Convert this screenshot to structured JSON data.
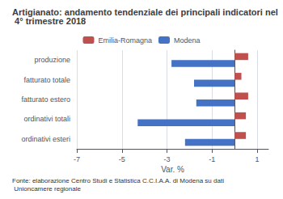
{
  "chart_data": {
    "type": "bar",
    "orientation": "horizontal",
    "title": "Artigianato: andamento tendenziale dei principali indicatori nel 4° trimestre 2018",
    "annotations": [
      "Fonte: elaborazione Centro Studi e Statistica C.C.I.A.A. di Modena su dati Unioncamere regionale"
    ],
    "categories": [
      "ordinativi esteri",
      "ordinativi totali",
      "fatturato estero",
      "fatturato totale",
      "produzione"
    ],
    "series": [
      {
        "name": "Emilia-Romagna",
        "color": "#c0504d",
        "values": [
          0.5,
          0.5,
          0.6,
          0.3,
          0.6
        ]
      },
      {
        "name": "Modena",
        "color": "#4472c4",
        "values": [
          -2.2,
          -4.3,
          -1.7,
          -1.8,
          -2.8
        ]
      }
    ],
    "xlabel": "Var. %",
    "xlim": [
      -7,
      1.5
    ],
    "xticks": [
      -7,
      -5,
      -3,
      -1,
      1
    ],
    "grid": true,
    "legend": "top"
  }
}
